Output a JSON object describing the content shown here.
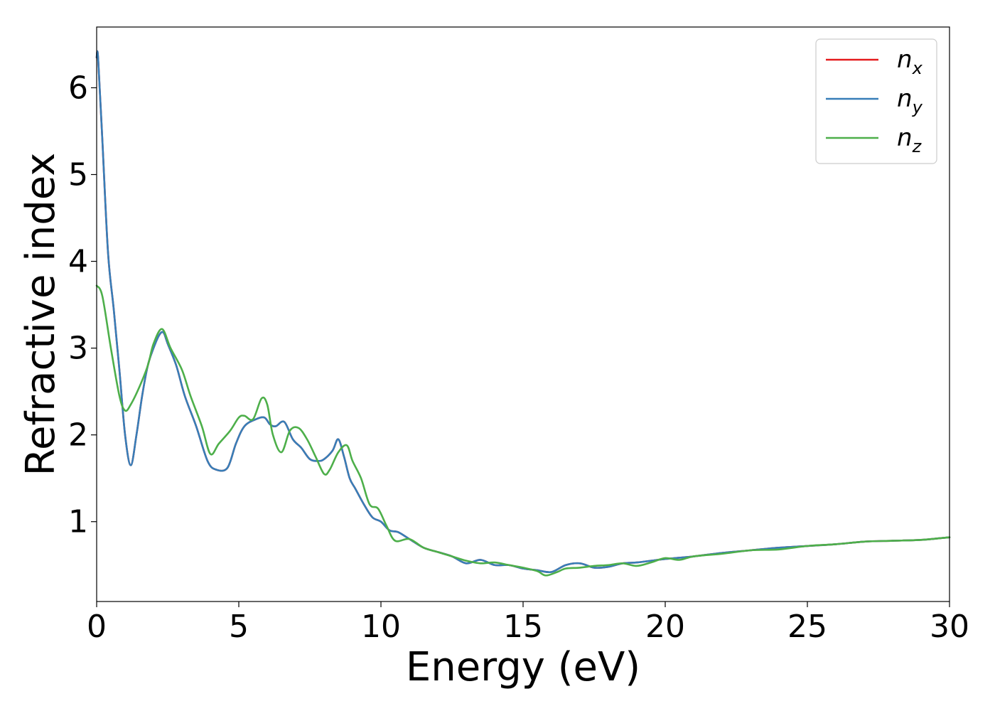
{
  "chart_data": {
    "type": "line",
    "title": "",
    "xlabel": "Energy (eV)",
    "ylabel": "Refractive index",
    "xlim": [
      0,
      30
    ],
    "ylim": [
      0.08,
      6.7
    ],
    "xticks": [
      0,
      5,
      10,
      15,
      20,
      25,
      30
    ],
    "yticks": [
      1,
      2,
      3,
      4,
      5,
      6
    ],
    "grid": false,
    "legend_position": "top-right",
    "series": [
      {
        "name": "n_x",
        "legend_base": "n",
        "legend_sub": "x",
        "color": "#e41a1c",
        "x": [
          0,
          0.05,
          0.2,
          0.4,
          0.6,
          0.8,
          1.0,
          1.2,
          1.4,
          1.6,
          1.8,
          2.0,
          2.2,
          2.35,
          2.5,
          2.8,
          3.1,
          3.5,
          3.9,
          4.2,
          4.6,
          4.9,
          5.2,
          5.6,
          5.9,
          6.1,
          6.3,
          6.6,
          6.9,
          7.2,
          7.5,
          7.8,
          8.0,
          8.3,
          8.5,
          8.7,
          8.9,
          9.1,
          9.4,
          9.7,
          10.0,
          10.3,
          10.6,
          11.0,
          11.5,
          12.0,
          12.5,
          13.0,
          13.5,
          14.0,
          14.5,
          15.0,
          15.5,
          16.0,
          16.5,
          17.0,
          17.5,
          18.0,
          18.5,
          19.0,
          19.5,
          20.0,
          21.0,
          22.0,
          23.0,
          24.0,
          25.0,
          26.0,
          27.0,
          28.0,
          29.0,
          30.0
        ],
        "values": [
          6.35,
          6.35,
          5.4,
          4.1,
          3.45,
          2.75,
          2.0,
          1.65,
          2.0,
          2.45,
          2.8,
          3.0,
          3.15,
          3.18,
          3.05,
          2.8,
          2.45,
          2.1,
          1.7,
          1.6,
          1.62,
          1.9,
          2.1,
          2.18,
          2.2,
          2.12,
          2.1,
          2.15,
          1.95,
          1.85,
          1.72,
          1.7,
          1.72,
          1.82,
          1.95,
          1.75,
          1.5,
          1.38,
          1.2,
          1.05,
          1.0,
          0.9,
          0.88,
          0.8,
          0.7,
          0.65,
          0.6,
          0.52,
          0.56,
          0.5,
          0.5,
          0.46,
          0.44,
          0.42,
          0.5,
          0.52,
          0.47,
          0.48,
          0.52,
          0.53,
          0.55,
          0.57,
          0.6,
          0.64,
          0.67,
          0.7,
          0.72,
          0.74,
          0.77,
          0.78,
          0.79,
          0.82
        ]
      },
      {
        "name": "n_y",
        "legend_base": "n",
        "legend_sub": "y",
        "color": "#377eb8",
        "x": [
          0,
          0.05,
          0.2,
          0.4,
          0.6,
          0.8,
          1.0,
          1.2,
          1.4,
          1.6,
          1.8,
          2.0,
          2.2,
          2.35,
          2.5,
          2.8,
          3.1,
          3.5,
          3.9,
          4.2,
          4.6,
          4.9,
          5.2,
          5.6,
          5.9,
          6.1,
          6.3,
          6.6,
          6.9,
          7.2,
          7.5,
          7.8,
          8.0,
          8.3,
          8.5,
          8.7,
          8.9,
          9.1,
          9.4,
          9.7,
          10.0,
          10.3,
          10.6,
          11.0,
          11.5,
          12.0,
          12.5,
          13.0,
          13.5,
          14.0,
          14.5,
          15.0,
          15.5,
          16.0,
          16.5,
          17.0,
          17.5,
          18.0,
          18.5,
          19.0,
          19.5,
          20.0,
          21.0,
          22.0,
          23.0,
          24.0,
          25.0,
          26.0,
          27.0,
          28.0,
          29.0,
          30.0
        ],
        "values": [
          6.35,
          6.35,
          5.4,
          4.1,
          3.45,
          2.75,
          2.0,
          1.65,
          2.0,
          2.45,
          2.8,
          3.0,
          3.15,
          3.18,
          3.05,
          2.8,
          2.45,
          2.1,
          1.7,
          1.6,
          1.62,
          1.9,
          2.1,
          2.18,
          2.2,
          2.12,
          2.1,
          2.15,
          1.95,
          1.85,
          1.72,
          1.7,
          1.72,
          1.82,
          1.95,
          1.75,
          1.5,
          1.38,
          1.2,
          1.05,
          1.0,
          0.9,
          0.88,
          0.8,
          0.7,
          0.65,
          0.6,
          0.52,
          0.56,
          0.5,
          0.5,
          0.46,
          0.44,
          0.42,
          0.5,
          0.52,
          0.47,
          0.48,
          0.52,
          0.53,
          0.55,
          0.57,
          0.6,
          0.64,
          0.67,
          0.7,
          0.72,
          0.74,
          0.77,
          0.78,
          0.79,
          0.82
        ]
      },
      {
        "name": "n_z",
        "legend_base": "n",
        "legend_sub": "z",
        "color": "#4daf4a",
        "x": [
          0,
          0.2,
          0.5,
          0.8,
          1.0,
          1.2,
          1.5,
          1.8,
          2.0,
          2.3,
          2.6,
          3.0,
          3.3,
          3.7,
          4.0,
          4.3,
          4.7,
          5.0,
          5.2,
          5.5,
          5.8,
          6.0,
          6.2,
          6.5,
          6.8,
          7.1,
          7.4,
          7.7,
          8.0,
          8.2,
          8.5,
          8.8,
          9.0,
          9.3,
          9.6,
          9.9,
          10.2,
          10.5,
          11.0,
          11.5,
          12.0,
          12.5,
          13.0,
          13.5,
          14.0,
          14.5,
          15.0,
          15.5,
          15.8,
          16.2,
          16.5,
          17.0,
          17.5,
          18.0,
          18.5,
          19.0,
          19.5,
          20.0,
          20.5,
          21.0,
          22.0,
          23.0,
          24.0,
          25.0,
          26.0,
          27.0,
          28.0,
          29.0,
          30.0
        ],
        "values": [
          3.72,
          3.6,
          3.0,
          2.45,
          2.28,
          2.35,
          2.55,
          2.8,
          3.05,
          3.22,
          3.0,
          2.75,
          2.45,
          2.1,
          1.78,
          1.9,
          2.05,
          2.2,
          2.22,
          2.18,
          2.42,
          2.35,
          2.0,
          1.8,
          2.05,
          2.08,
          1.95,
          1.75,
          1.55,
          1.6,
          1.8,
          1.88,
          1.7,
          1.5,
          1.2,
          1.15,
          0.95,
          0.78,
          0.8,
          0.7,
          0.65,
          0.6,
          0.55,
          0.52,
          0.53,
          0.5,
          0.47,
          0.43,
          0.38,
          0.42,
          0.46,
          0.47,
          0.49,
          0.5,
          0.52,
          0.49,
          0.53,
          0.58,
          0.56,
          0.6,
          0.63,
          0.67,
          0.68,
          0.72,
          0.74,
          0.77,
          0.78,
          0.79,
          0.82
        ]
      }
    ]
  }
}
